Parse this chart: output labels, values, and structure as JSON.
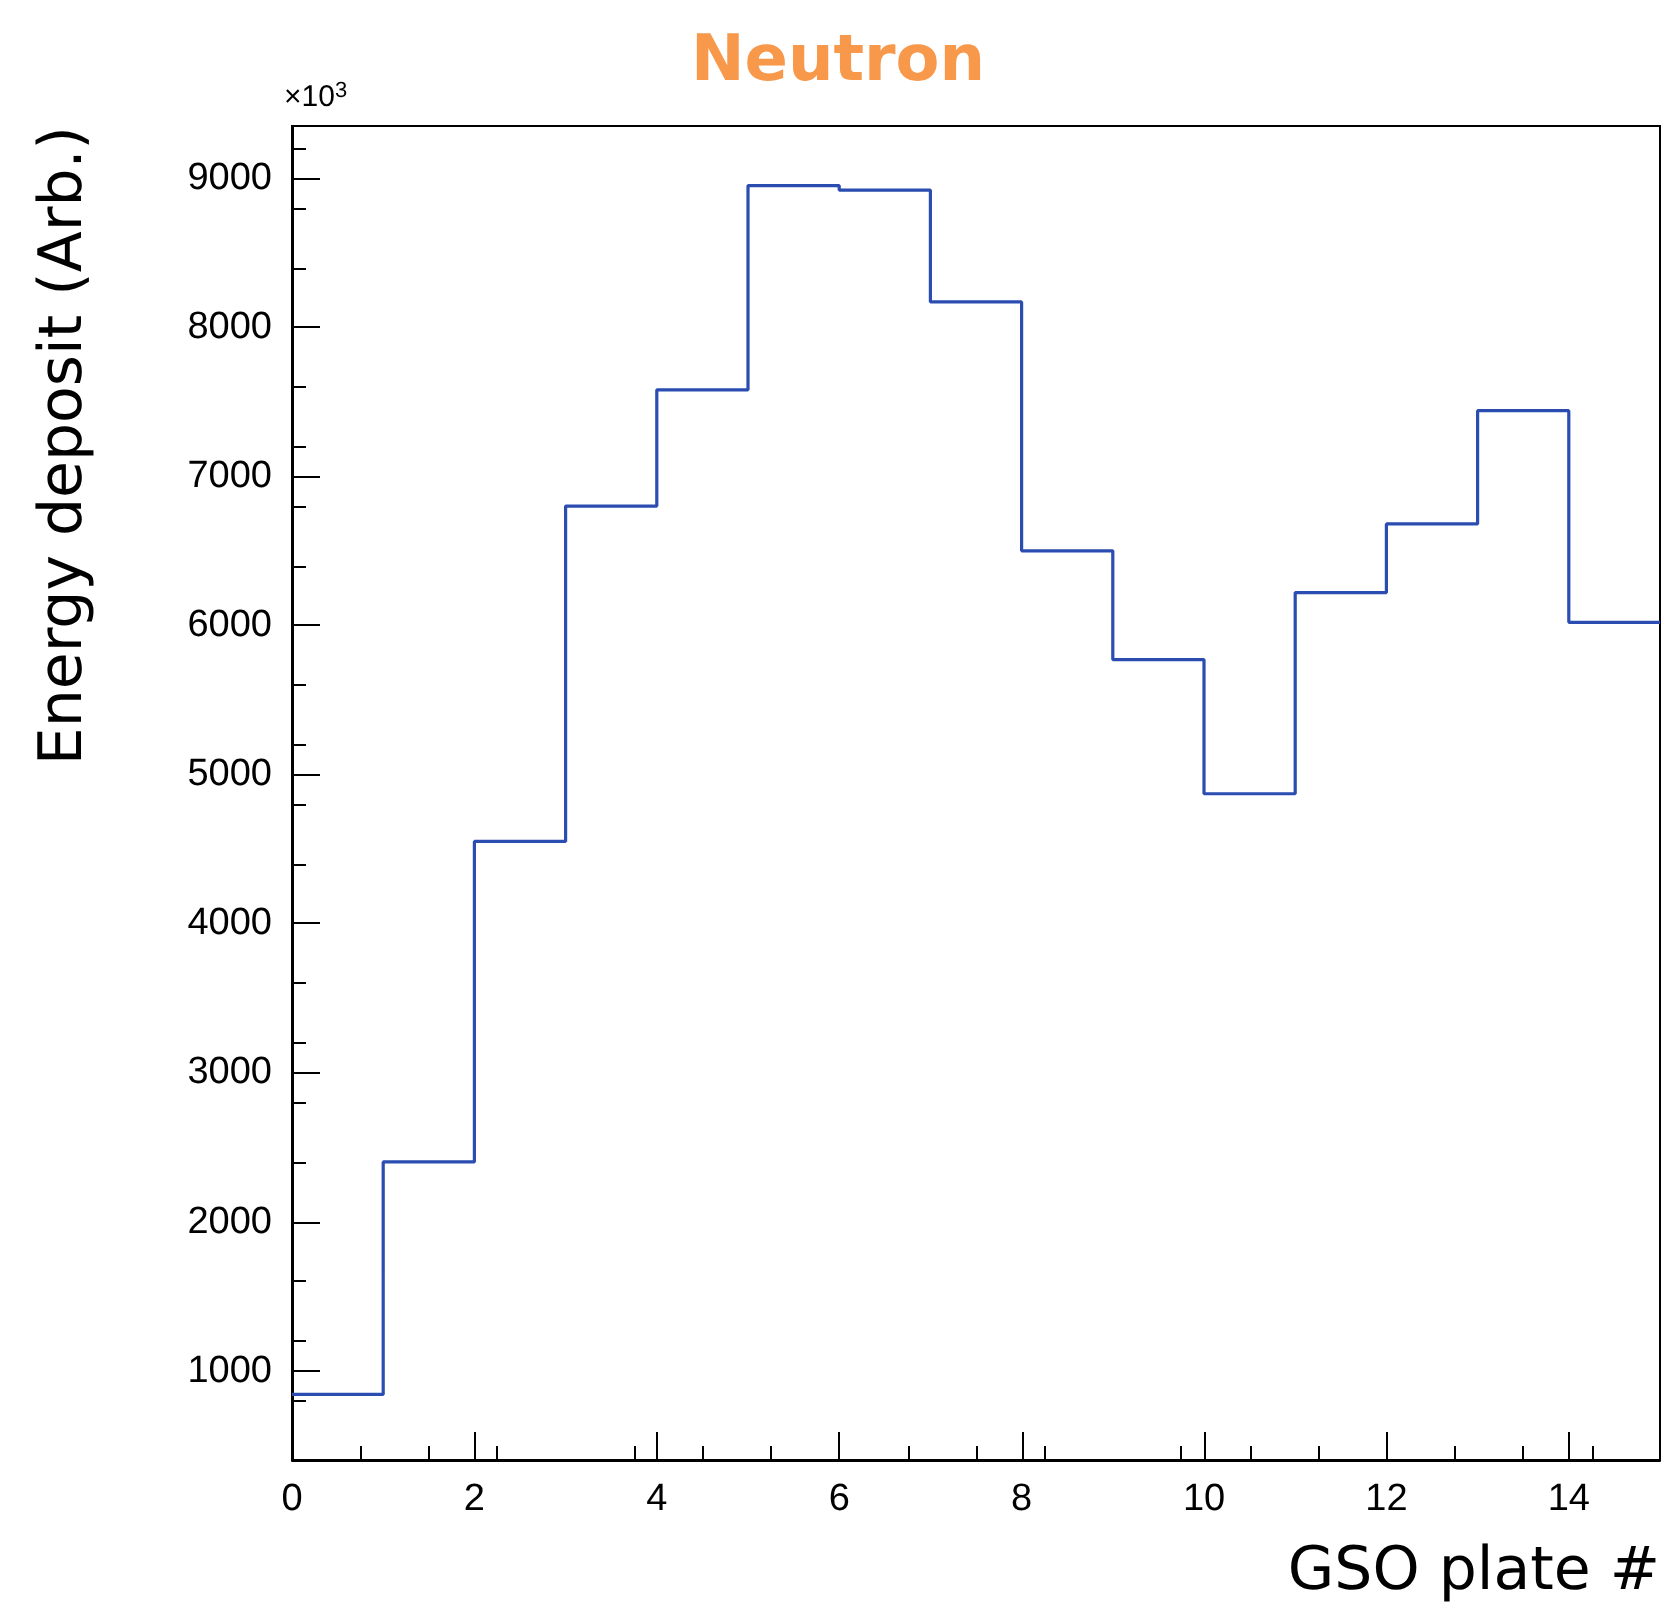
{
  "chart_data": {
    "type": "histogram",
    "title": "Neutron",
    "xlabel": "GSO plate #",
    "ylabel": "Energy deposit (Arb.)",
    "annotations": [
      "×10$^{3}$"
    ],
    "bins": [
      0,
      1,
      2,
      3,
      4,
      5,
      6,
      7,
      8,
      9,
      10,
      11,
      12,
      13,
      14,
      15
    ],
    "values": [
      840,
      2400,
      4550,
      6800,
      7580,
      8950,
      8920,
      8170,
      6500,
      5770,
      4870,
      6220,
      6680,
      7440,
      6020
    ],
    "color": "#2b4cb0",
    "xlim": [
      0,
      15
    ],
    "xticks": [
      0,
      2,
      4,
      6,
      8,
      10,
      12,
      14
    ],
    "ylim": [
      400,
      9350
    ],
    "yticks": [
      1000,
      2000,
      3000,
      4000,
      5000,
      6000,
      7000,
      8000,
      9000
    ],
    "grid": false
  }
}
